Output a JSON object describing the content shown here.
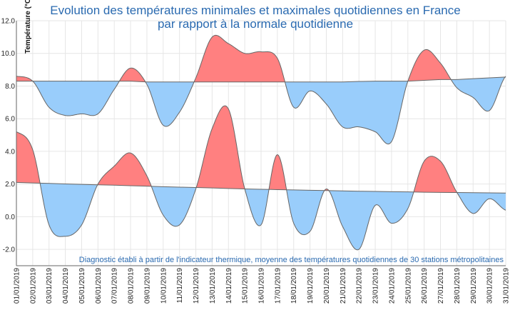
{
  "chart_data": {
    "type": "line",
    "title_lines": [
      "Evolution des températures minimales et maximales quotidiennes en France",
      "par rapport à la normale quotidienne"
    ],
    "ylabel": "Température (°C)",
    "xlabel": "",
    "ylim": [
      -3,
      12
    ],
    "yticks": [
      "-2.0",
      "0.0",
      "2.0",
      "4.0",
      "6.0",
      "8.0",
      "10.0",
      "12.0"
    ],
    "grid": true,
    "categories": [
      "01/01/2019",
      "02/01/2019",
      "03/01/2019",
      "04/01/2019",
      "05/01/2019",
      "06/01/2019",
      "07/01/2019",
      "08/01/2019",
      "09/01/2019",
      "10/01/2019",
      "11/01/2019",
      "12/01/2019",
      "13/01/2019",
      "14/01/2019",
      "15/01/2019",
      "16/01/2019",
      "17/01/2019",
      "18/01/2019",
      "19/01/2019",
      "20/01/2019",
      "21/01/2019",
      "22/01/2019",
      "23/01/2019",
      "24/01/2019",
      "25/01/2019",
      "26/01/2019",
      "27/01/2019",
      "28/01/2019",
      "29/01/2019",
      "30/01/2019",
      "31/01/2019"
    ],
    "series": [
      {
        "kind": "max",
        "observed": [
          8.6,
          8.3,
          6.7,
          6.2,
          6.3,
          6.3,
          7.8,
          9.1,
          8.1,
          5.6,
          6.4,
          8.5,
          11.0,
          10.6,
          10.0,
          10.1,
          9.7,
          6.7,
          7.7,
          6.9,
          5.5,
          5.5,
          5.2,
          4.6,
          8.3,
          10.2,
          9.4,
          7.9,
          7.3,
          6.5,
          8.6
        ],
        "normal": [
          8.3,
          8.3,
          8.3,
          8.3,
          8.3,
          8.3,
          8.3,
          8.3,
          8.25,
          8.25,
          8.25,
          8.25,
          8.25,
          8.25,
          8.25,
          8.25,
          8.25,
          8.25,
          8.25,
          8.25,
          8.25,
          8.28,
          8.3,
          8.3,
          8.3,
          8.35,
          8.4,
          8.4,
          8.45,
          8.5,
          8.55
        ]
      },
      {
        "kind": "min",
        "observed": [
          5.2,
          4.1,
          -0.5,
          -1.2,
          -0.5,
          2.0,
          3.1,
          3.9,
          2.5,
          0.1,
          -0.5,
          1.7,
          5.4,
          6.6,
          1.7,
          -0.5,
          3.8,
          -0.4,
          -0.9,
          1.7,
          -0.6,
          -2.0,
          0.7,
          -0.4,
          0.5,
          3.4,
          3.4,
          1.5,
          0.2,
          1.1,
          0.4
        ],
        "normal": [
          2.1,
          2.07,
          2.04,
          2.01,
          1.98,
          1.95,
          1.93,
          1.9,
          1.87,
          1.84,
          1.81,
          1.79,
          1.76,
          1.73,
          1.7,
          1.68,
          1.66,
          1.64,
          1.62,
          1.6,
          1.58,
          1.56,
          1.55,
          1.53,
          1.52,
          1.5,
          1.49,
          1.48,
          1.47,
          1.46,
          1.45
        ]
      }
    ],
    "note": "Diagnostic établi à partir de l'indicateur thermique, moyenne des températures quotidiennes de 30 stations métropolitaines",
    "colors": {
      "above_normal": "#ff8080",
      "below_normal": "#99cdfb",
      "line": "#666666",
      "grid": "#e6e6e6",
      "title": "#2a6ab0"
    }
  }
}
